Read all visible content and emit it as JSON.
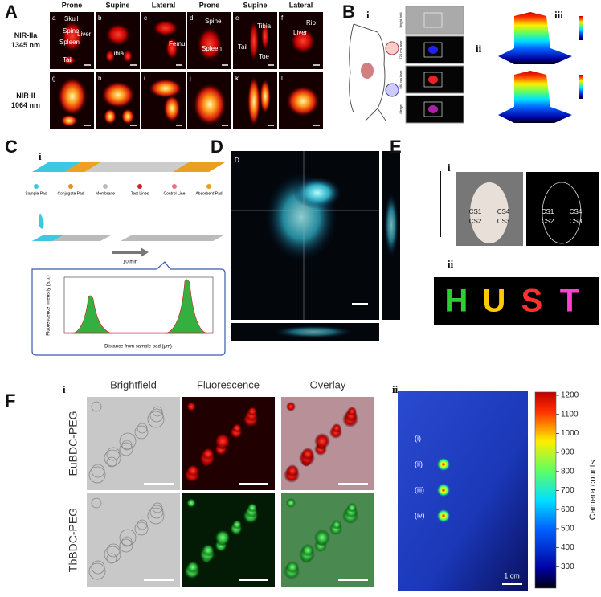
{
  "panels": {
    "A": {
      "label": "A",
      "columns": [
        "Prone",
        "Supine",
        "Lateral",
        "Prone",
        "Supine",
        "Lateral"
      ],
      "rows": [
        [
          "NIR-IIa",
          "1345 nm"
        ],
        [
          "NIR-II",
          "1064 nm"
        ]
      ],
      "subpanels": [
        "a",
        "b",
        "c",
        "d",
        "e",
        "f",
        "g",
        "h",
        "i",
        "j",
        "k",
        "l"
      ],
      "annotations": [
        [
          "Skull",
          "Spine",
          "Liver",
          "Spleen",
          "Tail"
        ],
        [
          "Tibia"
        ],
        [
          "Femur"
        ],
        [
          "Spine",
          "Spleen"
        ],
        [
          "Tibia",
          "Tail",
          "Toe"
        ],
        [
          "Rib",
          "Liver"
        ]
      ]
    },
    "B": {
      "label": "B",
      "sublabels": [
        "i",
        "ii",
        "iii"
      ],
      "channels": [
        "Bright field",
        "720 nm laser",
        "980 nm laser",
        "Merge"
      ]
    },
    "C": {
      "label": "C",
      "sublabels": [
        "i",
        "ii"
      ],
      "legend": [
        "Sample Pad",
        "Conjugate Pad",
        "Membrane",
        "Test Lines",
        "Control Line",
        "Absorbent Pad"
      ],
      "time": "10 min",
      "y_label": "Fluorescence intensity (a.u.)",
      "x_label": "Distance from sample pad (μm)"
    },
    "D": {
      "label": "D"
    },
    "E": {
      "label": "E",
      "sublabels": [
        "i",
        "ii"
      ],
      "sites": [
        "CS1",
        "CS2",
        "CS3",
        "CS4"
      ],
      "letters": [
        "H",
        "U",
        "S",
        "T"
      ]
    },
    "F": {
      "label": "F",
      "sublabels": [
        "i",
        "ii"
      ],
      "columns": [
        "Brightfield",
        "Fluorescence",
        "Overlay"
      ],
      "rows": [
        "EuBDC-PEG",
        "TbBDC-PEG"
      ],
      "spots": [
        "(i)",
        "(ii)",
        "(iii)",
        "(iv)"
      ],
      "scale": "1 cm",
      "colorbar_ticks": [
        "1200",
        "1100",
        "1000",
        "900",
        "800",
        "700",
        "600",
        "500",
        "400",
        "300"
      ],
      "colorbar_label": "Camera counts"
    }
  }
}
